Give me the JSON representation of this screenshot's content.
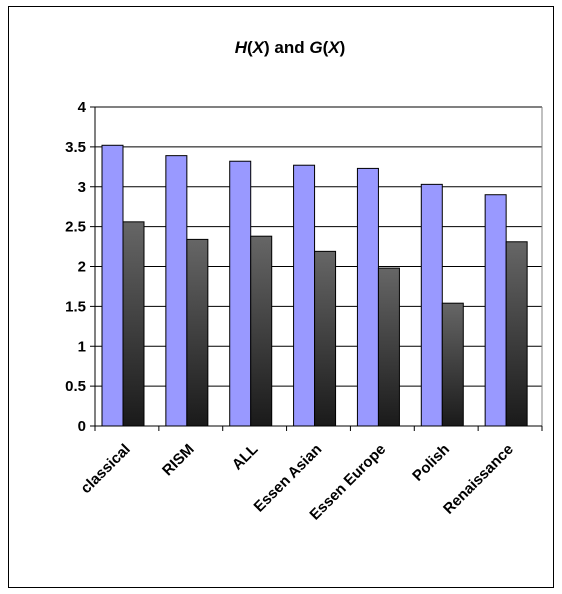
{
  "chart_data": {
    "type": "bar",
    "title": "",
    "title_parts": [
      {
        "text": "H",
        "italic": true
      },
      {
        "text": "(",
        "italic": false
      },
      {
        "text": "X",
        "italic": true
      },
      {
        "text": ") and ",
        "italic": false
      },
      {
        "text": "G",
        "italic": true
      },
      {
        "text": "(",
        "italic": false
      },
      {
        "text": "X",
        "italic": true
      },
      {
        "text": ")",
        "italic": false
      }
    ],
    "xlabel": "",
    "ylabel": "",
    "categories": [
      "classical",
      "RISM",
      "ALL",
      "Essen Asian",
      "Essen Europe",
      "Polish",
      "Renaissance"
    ],
    "series": [
      {
        "values": [
          3.52,
          3.39,
          3.32,
          3.27,
          3.23,
          3.03,
          2.9
        ],
        "color": "#9999ff"
      },
      {
        "values": [
          2.56,
          2.34,
          2.38,
          2.19,
          1.98,
          1.54,
          2.31
        ],
        "color": "#333333"
      }
    ],
    "ylim": [
      0,
      4
    ],
    "yticks": [
      "0",
      "0.5",
      "1",
      "1.5",
      "2",
      "2.5",
      "3",
      "3.5",
      "4"
    ],
    "grid": true,
    "legend": "none"
  }
}
